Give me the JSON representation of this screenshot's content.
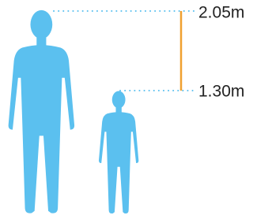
{
  "figures": [
    {
      "label": "2.05m"
    },
    {
      "label": "1.30m"
    }
  ]
}
